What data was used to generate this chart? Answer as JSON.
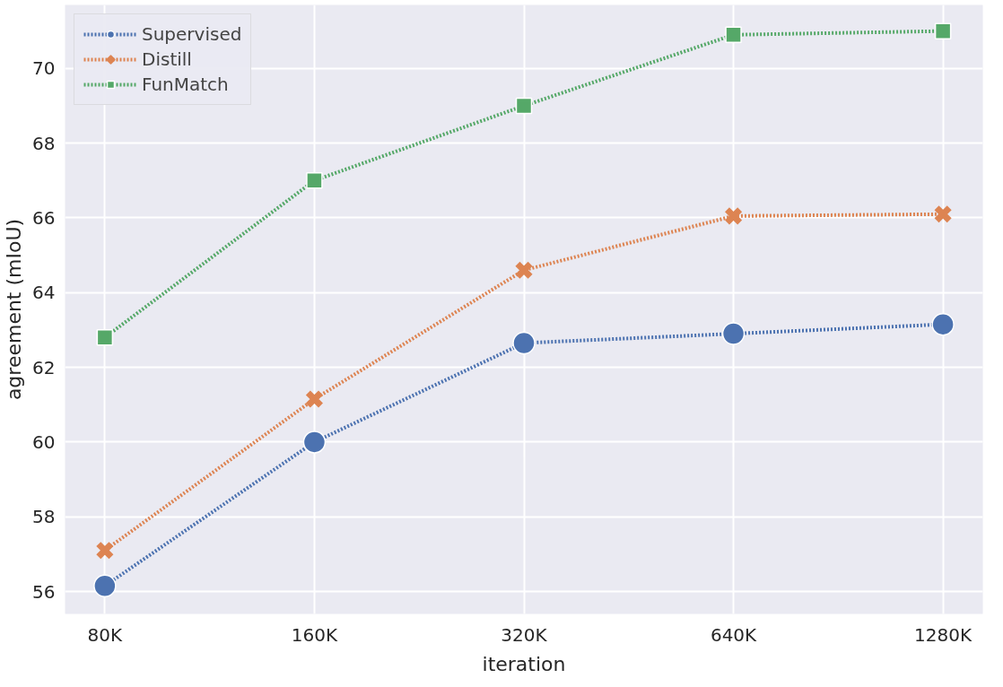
{
  "chart_data": {
    "type": "line",
    "xlabel": "iteration",
    "ylabel": "agreement (mIoU)",
    "categories": [
      "80K",
      "160K",
      "320K",
      "640K",
      "1280K"
    ],
    "ylim": [
      55.4,
      71.7
    ],
    "yticks": [
      56,
      58,
      60,
      62,
      64,
      66,
      68,
      70
    ],
    "grid": true,
    "legend": "top left",
    "line_style": "dotted",
    "series": [
      {
        "name": "Supervised",
        "color": "#4c72b0",
        "marker": "circle",
        "values": [
          56.15,
          60.0,
          62.65,
          62.9,
          63.15
        ]
      },
      {
        "name": "Distill",
        "color": "#dd8452",
        "marker": "cross",
        "values": [
          57.1,
          61.15,
          64.6,
          66.05,
          66.1
        ]
      },
      {
        "name": "FunMatch",
        "color": "#55a868",
        "marker": "square",
        "values": [
          62.8,
          67.0,
          69.0,
          70.9,
          71.0
        ]
      }
    ]
  }
}
